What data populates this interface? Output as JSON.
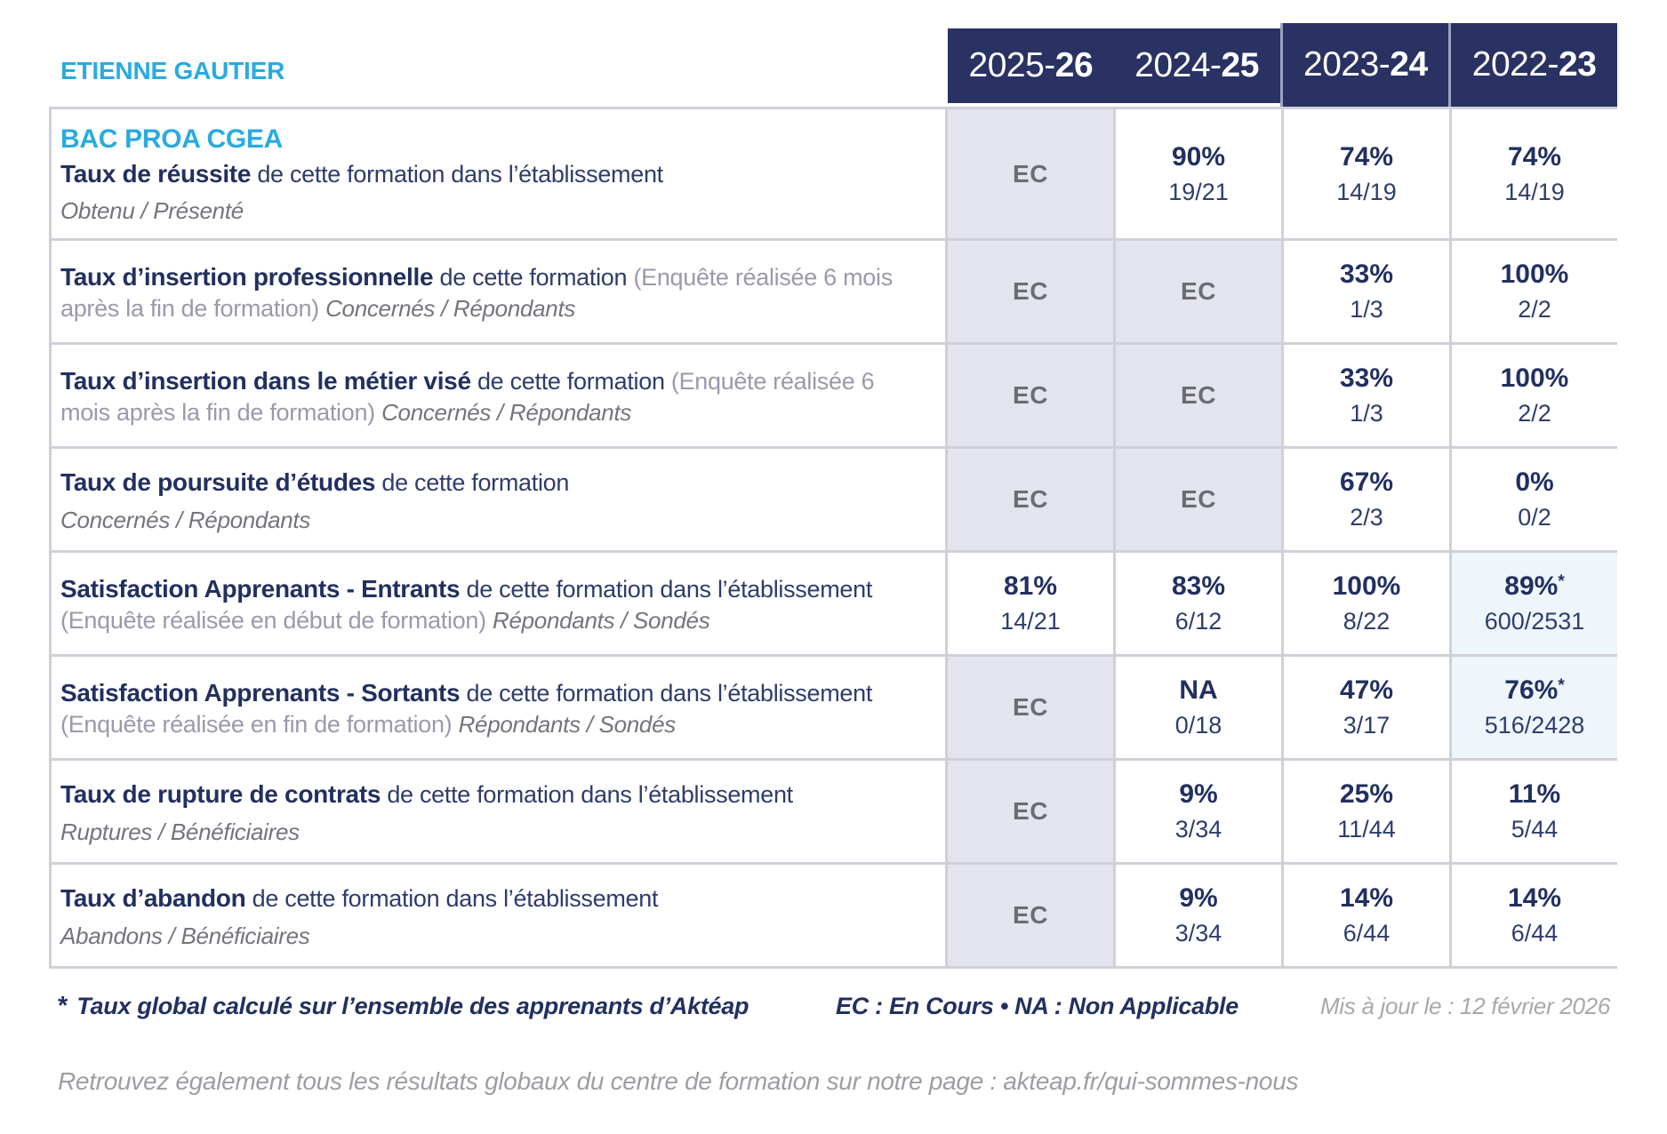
{
  "page": {
    "school_name": "ETIENNE GAUTIER",
    "program": "BAC PROA CGEA"
  },
  "colors": {
    "accent_cyan": "#29abe2",
    "header_navy": "#293263",
    "value_navy": "#223060",
    "ec_cell_bg": "#e4e4ee",
    "highlight_cell_bg": "#eef5fb",
    "grid_line": "#d0d0da"
  },
  "header": {
    "years": [
      {
        "start": "2025-",
        "end": "26"
      },
      {
        "start": "2024-",
        "end": "25"
      },
      {
        "start": "2023-",
        "end": "24"
      },
      {
        "start": "2022-",
        "end": "23"
      }
    ]
  },
  "table": {
    "rows": [
      {
        "program_header": true,
        "title": "Taux de réussite",
        "desc": "de cette formation dans l’établissement",
        "paren": "",
        "subtitle": "Obtenu / Présenté",
        "subtitle_inline": false,
        "values": [
          {
            "type": "ec",
            "text": "EC"
          },
          {
            "type": "val",
            "pct": "90%",
            "frac": "19/21"
          },
          {
            "type": "val",
            "pct": "74%",
            "frac": "14/19"
          },
          {
            "type": "val",
            "pct": "74%",
            "frac": "14/19"
          }
        ]
      },
      {
        "title": "Taux d’insertion professionnelle",
        "desc": "de cette formation",
        "paren": "(Enquête réalisée 6 mois après la fin de formation)",
        "subtitle": "Concernés / Répondants",
        "subtitle_inline": true,
        "values": [
          {
            "type": "ec",
            "text": "EC"
          },
          {
            "type": "ec",
            "text": "EC"
          },
          {
            "type": "val",
            "pct": "33%",
            "frac": "1/3"
          },
          {
            "type": "val",
            "pct": "100%",
            "frac": "2/2"
          }
        ]
      },
      {
        "title": "Taux d’insertion dans le métier visé",
        "desc": "de cette formation",
        "paren": "(Enquête réalisée 6 mois après la fin de formation)",
        "subtitle": "Concernés / Répondants",
        "subtitle_inline": true,
        "values": [
          {
            "type": "ec",
            "text": "EC"
          },
          {
            "type": "ec",
            "text": "EC"
          },
          {
            "type": "val",
            "pct": "33%",
            "frac": "1/3"
          },
          {
            "type": "val",
            "pct": "100%",
            "frac": "2/2"
          }
        ]
      },
      {
        "title": "Taux de poursuite d’études",
        "desc": "de cette formation",
        "paren": "",
        "subtitle": "Concernés / Répondants",
        "subtitle_inline": false,
        "values": [
          {
            "type": "ec",
            "text": "EC"
          },
          {
            "type": "ec",
            "text": "EC"
          },
          {
            "type": "val",
            "pct": "67%",
            "frac": "2/3"
          },
          {
            "type": "val",
            "pct": "0%",
            "frac": "0/2"
          }
        ]
      },
      {
        "title": "Satisfaction Apprenants - Entrants",
        "desc": "de cette formation dans l’établissement",
        "paren": "(Enquête réalisée en début de formation)",
        "subtitle": "Répondants / Sondés",
        "subtitle_inline": true,
        "values": [
          {
            "type": "val",
            "pct": "81%",
            "frac": "14/21"
          },
          {
            "type": "val",
            "pct": "83%",
            "frac": "6/12"
          },
          {
            "type": "val",
            "pct": "100%",
            "frac": "8/22"
          },
          {
            "type": "val",
            "pct": "89%",
            "star": true,
            "frac": "600/2531",
            "highlight": true
          }
        ]
      },
      {
        "title": "Satisfaction Apprenants - Sortants",
        "desc": "de cette formation dans l’établissement",
        "paren": "(Enquête réalisée en fin de formation)",
        "subtitle": "Répondants / Sondés",
        "subtitle_inline": true,
        "values": [
          {
            "type": "ec",
            "text": "EC"
          },
          {
            "type": "val",
            "pct": "NA",
            "frac": "0/18"
          },
          {
            "type": "val",
            "pct": "47%",
            "frac": "3/17"
          },
          {
            "type": "val",
            "pct": "76%",
            "star": true,
            "frac": "516/2428",
            "highlight": true
          }
        ]
      },
      {
        "title": "Taux de rupture de contrats",
        "desc": "de cette formation dans l’établissement",
        "paren": "",
        "subtitle": "Ruptures / Bénéficiaires",
        "subtitle_inline": false,
        "values": [
          {
            "type": "ec",
            "text": "EC"
          },
          {
            "type": "val",
            "pct": "9%",
            "frac": "3/34"
          },
          {
            "type": "val",
            "pct": "25%",
            "frac": "11/44"
          },
          {
            "type": "val",
            "pct": "11%",
            "frac": "5/44"
          }
        ]
      },
      {
        "title": "Taux d’abandon",
        "desc": "de cette formation dans l’établissement",
        "paren": "",
        "subtitle": "Abandons / Bénéficiaires",
        "subtitle_inline": false,
        "values": [
          {
            "type": "ec",
            "text": "EC"
          },
          {
            "type": "val",
            "pct": "9%",
            "frac": "3/34"
          },
          {
            "type": "val",
            "pct": "14%",
            "frac": "6/44"
          },
          {
            "type": "val",
            "pct": "14%",
            "frac": "6/44"
          }
        ]
      }
    ]
  },
  "footnote": {
    "star": "*",
    "text": "Taux global calculé sur l’ensemble des apprenants d’Aktéap",
    "legend": "EC : En Cours   •   NA : Non Applicable",
    "updated": "Mis à jour le : 12 février 2026"
  },
  "bottom_note": "Retrouvez également tous les résultats globaux du centre de formation sur notre page : akteap.fr/qui-sommes-nous"
}
